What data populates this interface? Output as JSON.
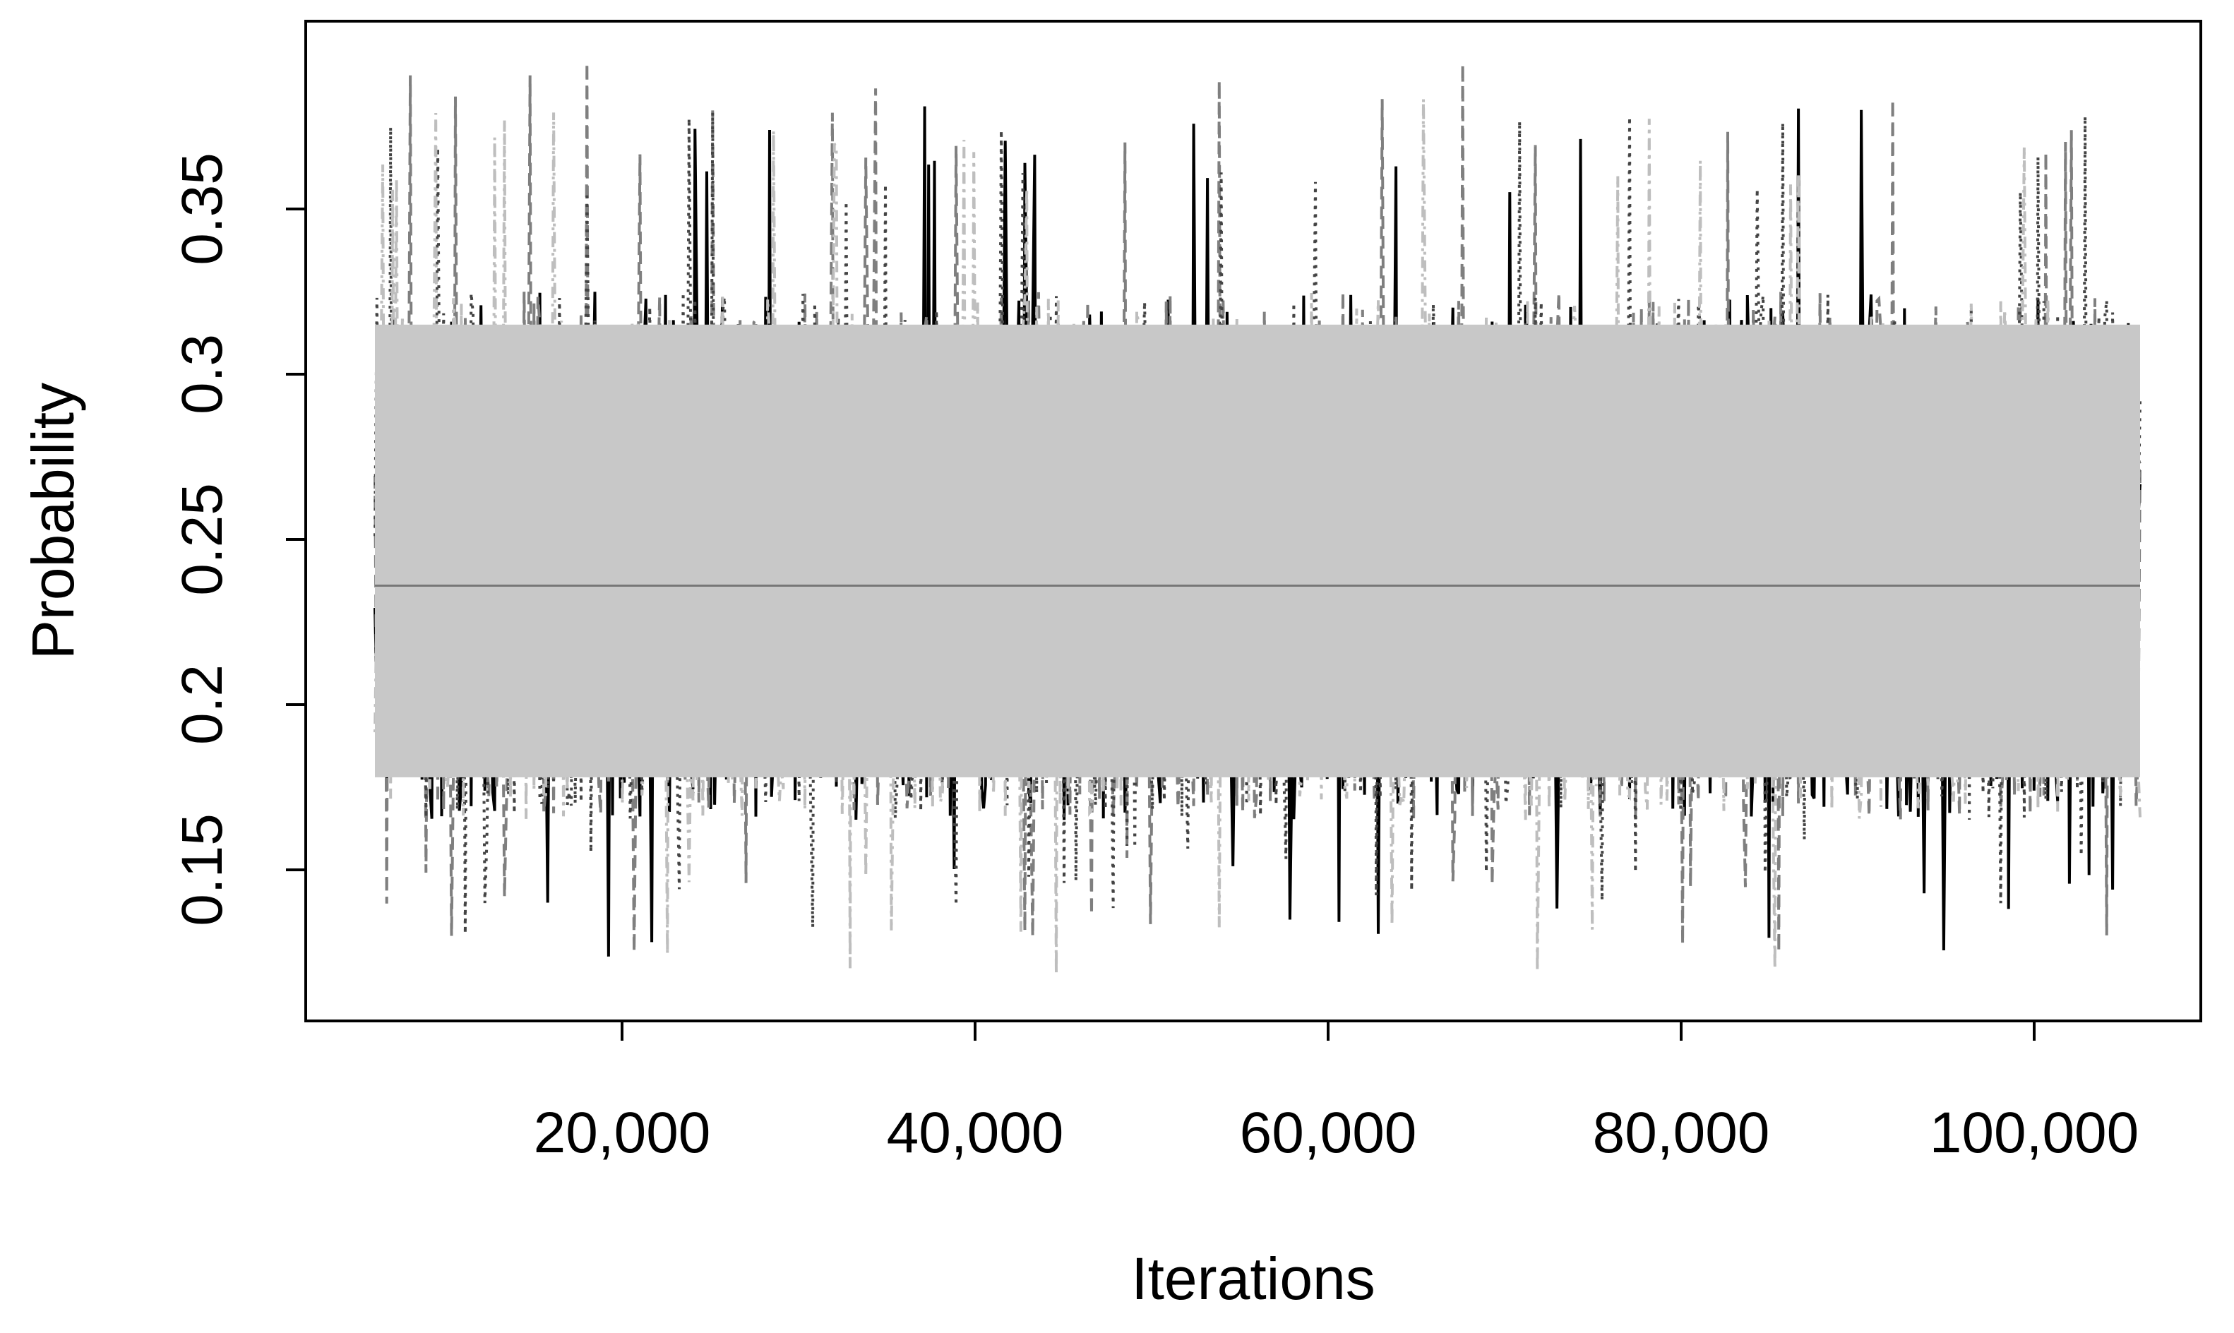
{
  "chart_data": {
    "type": "line",
    "title": "",
    "xlabel": "Iterations",
    "ylabel": "Probability",
    "xlim": [
      6000,
      106000
    ],
    "ylim": [
      0.12,
      0.395
    ],
    "x_ticks": [
      20000,
      40000,
      60000,
      80000,
      100000
    ],
    "x_tick_labels": [
      "20,000",
      "40,000",
      "60,000",
      "80,000",
      "100,000"
    ],
    "y_ticks": [
      0.15,
      0.2,
      0.25,
      0.3,
      0.35
    ],
    "y_tick_labels": [
      "0.15",
      "0.2",
      "0.25",
      "0.3",
      "0.35"
    ],
    "grid": false,
    "legend": "none",
    "series": [
      {
        "style": "solid",
        "color": "#000000",
        "mean": 0.236,
        "band_low": 0.165,
        "band_high": 0.325,
        "min": 0.122,
        "max": 0.383
      },
      {
        "style": "dashed",
        "color": "#7f7f7f",
        "mean": 0.236,
        "band_low": 0.165,
        "band_high": 0.325,
        "min": 0.125,
        "max": 0.395
      },
      {
        "style": "dotted",
        "color": "#444444",
        "mean": 0.236,
        "band_low": 0.165,
        "band_high": 0.325,
        "min": 0.13,
        "max": 0.38
      },
      {
        "style": "dotdash",
        "color": "#bebebe",
        "mean": 0.236,
        "band_low": 0.165,
        "band_high": 0.325,
        "min": 0.118,
        "max": 0.385
      }
    ],
    "mean_line": 0.236,
    "core_band": [
      0.178,
      0.315
    ]
  }
}
